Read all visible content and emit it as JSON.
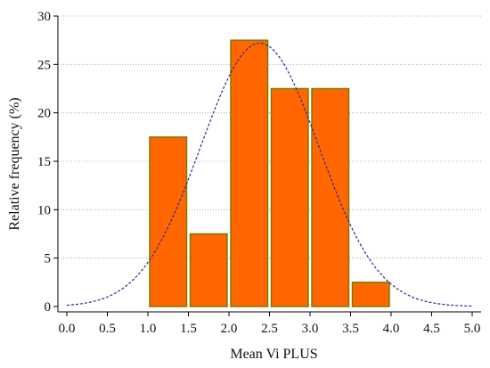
{
  "chart_data": {
    "type": "bar",
    "xlabel": "Mean Vi PLUS",
    "ylabel": "Relative frequency (%)",
    "xlim": [
      0.0,
      5.0
    ],
    "ylim": [
      0,
      30
    ],
    "xticks": [
      "0.0",
      "0.5",
      "1.0",
      "1.5",
      "2.0",
      "2.5",
      "3.0",
      "3.5",
      "4.0",
      "4.5",
      "5.0"
    ],
    "yticks": [
      "0",
      "5",
      "10",
      "15",
      "20",
      "25",
      "30"
    ],
    "grid": "horizontal-dotted",
    "bins": [
      {
        "start": 1.0,
        "end": 1.5,
        "value": 17.5
      },
      {
        "start": 1.5,
        "end": 2.0,
        "value": 7.5
      },
      {
        "start": 2.0,
        "end": 2.5,
        "value": 27.5
      },
      {
        "start": 2.5,
        "end": 3.0,
        "value": 22.5
      },
      {
        "start": 3.0,
        "end": 3.5,
        "value": 22.5
      },
      {
        "start": 3.5,
        "end": 4.0,
        "value": 2.5
      }
    ],
    "normal_curve": {
      "mean": 2.38,
      "sd": 0.73,
      "peak": 27.2,
      "style": "dashed"
    },
    "colors": {
      "bar_fill": "#ff6600",
      "bar_edge": "#7a7a00",
      "curve": "#2a2aa0",
      "grid": "#999999"
    }
  }
}
